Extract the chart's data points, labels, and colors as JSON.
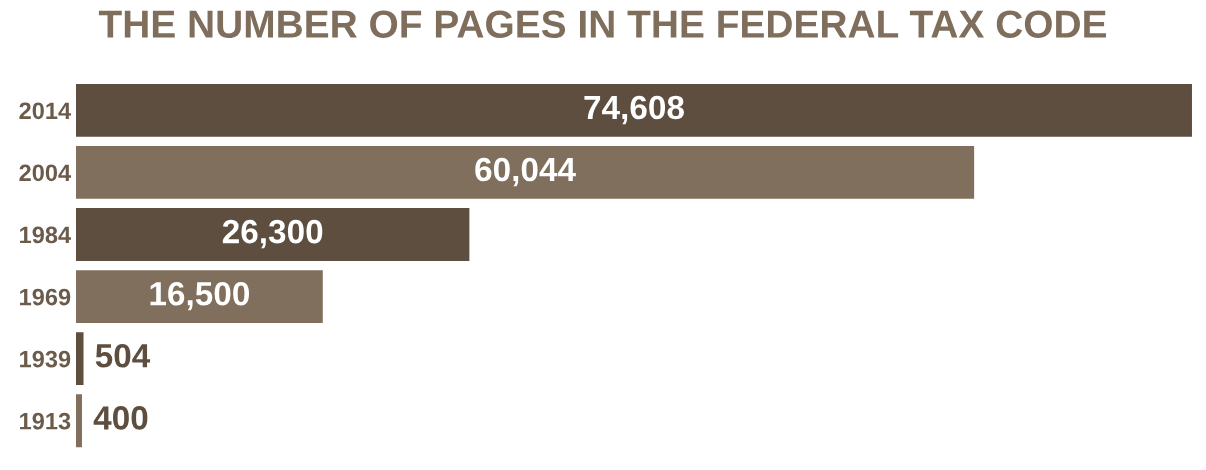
{
  "chart_data": {
    "type": "bar",
    "orientation": "horizontal",
    "title": "THE NUMBER OF PAGES IN THE FEDERAL TAX CODE",
    "categories": [
      "2014",
      "2004",
      "1984",
      "1969",
      "1939",
      "1913"
    ],
    "values": [
      74608,
      60044,
      26300,
      16500,
      504,
      400
    ],
    "colors": [
      "#5d4e40",
      "#806f5d",
      "#5d4e40",
      "#806f5d",
      "#5d4e40",
      "#806f5d"
    ],
    "value_labels": [
      "74,608",
      "60,044",
      "26,300",
      "16,500",
      "504",
      "400"
    ],
    "tick_labels": "y",
    "grid": false,
    "legend": false
  }
}
